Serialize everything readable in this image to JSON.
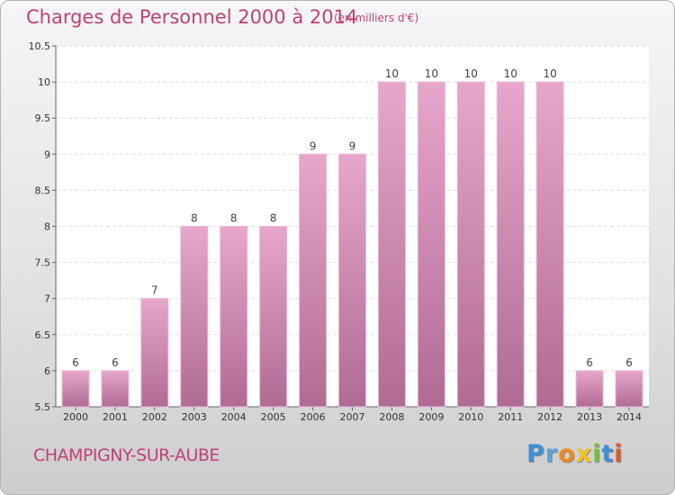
{
  "chart_data": {
    "type": "bar",
    "title": "Charges de Personnel 2000 à 2014",
    "subtitle": "(en milliers d'€)",
    "categories": [
      "2000",
      "2001",
      "2002",
      "2003",
      "2004",
      "2005",
      "2006",
      "2007",
      "2008",
      "2009",
      "2010",
      "2011",
      "2012",
      "2013",
      "2014"
    ],
    "values": [
      6,
      6,
      7,
      8,
      8,
      8,
      9,
      9,
      10,
      10,
      10,
      10,
      10,
      6,
      6
    ],
    "ylim": [
      5.5,
      10.5
    ],
    "yticks": [
      "5.5",
      "6",
      "6.5",
      "7",
      "7.5",
      "8",
      "8.5",
      "9",
      "9.5",
      "10",
      "10.5"
    ],
    "grid": true,
    "bar_color": "#d88fb7"
  },
  "footer": {
    "commune": "CHAMPIGNY-SUR-AUBE",
    "brand_letters": [
      {
        "ch": "P",
        "color": "#3d8fd6"
      },
      {
        "ch": "r",
        "color": "#5aa3dd"
      },
      {
        "ch": "o",
        "color": "#f08a1c"
      },
      {
        "ch": "x",
        "color": "#f0c21c"
      },
      {
        "ch": "i",
        "color": "#7bbf3a"
      },
      {
        "ch": "t",
        "color": "#3d8fd6"
      },
      {
        "ch": "i",
        "color": "#e05a2b"
      }
    ]
  }
}
